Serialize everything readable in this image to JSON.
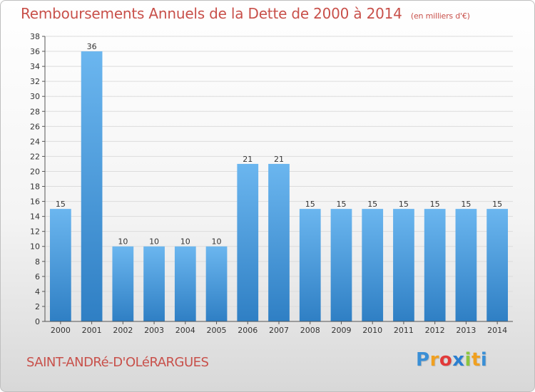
{
  "header": {
    "title": "Remboursements Annuels de la Dette de 2000 à 2014",
    "unit": "(en milliers d'€)"
  },
  "footer": {
    "commune": "SAINT-ANDRé-D'OLéRARGUES",
    "logo_letters": [
      "P",
      "r",
      "o",
      "x",
      "i",
      "t",
      "i"
    ],
    "logo_colors": [
      "#3a8fd6",
      "#f0a020",
      "#e23a3a",
      "#2b7fd0",
      "#8cc63f",
      "#f0a020",
      "#3a8fd6"
    ]
  },
  "chart_data": {
    "type": "bar",
    "title": "Remboursements Annuels de la Dette de 2000 à 2014",
    "unit": "(en milliers d'€)",
    "categories": [
      "2000",
      "2001",
      "2002",
      "2003",
      "2004",
      "2005",
      "2006",
      "2007",
      "2008",
      "2009",
      "2010",
      "2011",
      "2012",
      "2013",
      "2014"
    ],
    "values": [
      15,
      36,
      10,
      10,
      10,
      10,
      21,
      21,
      15,
      15,
      15,
      15,
      15,
      15,
      15
    ],
    "data_labels": [
      "15",
      "36",
      "10",
      "10",
      "10",
      "10",
      "21",
      "21",
      "15",
      "15",
      "15",
      "15",
      "15",
      "15",
      "15"
    ],
    "ylim": [
      0,
      38
    ],
    "ytick_step": 2,
    "grid": true,
    "bar_color": "#4a9de0"
  }
}
